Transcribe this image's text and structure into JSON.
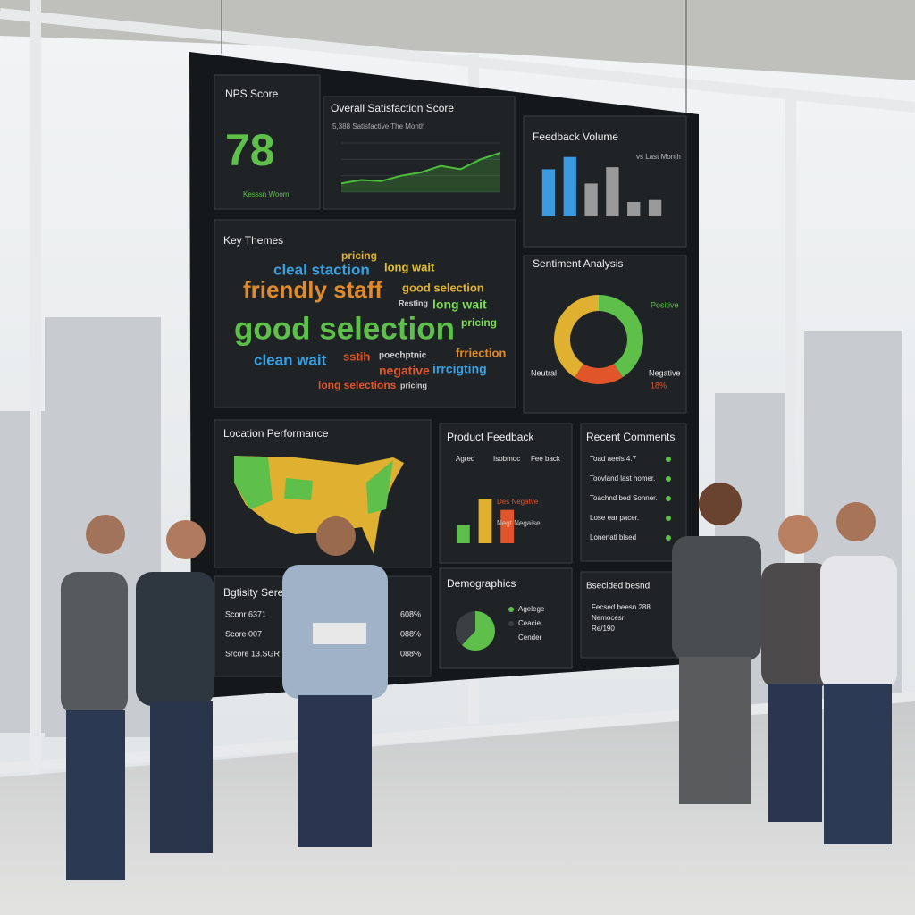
{
  "screen": {
    "nps": {
      "title": "NPS Score",
      "value": 78,
      "note": "Kesssn Woom"
    },
    "satisfaction": {
      "title": "Overall Satisfaction Score",
      "subtitle": "5,388 Satisfactive The Month",
      "values": [
        8,
        11,
        10,
        15,
        18,
        24,
        21,
        30,
        36
      ],
      "ylim": [
        0,
        45
      ],
      "color": "#4cbf3a"
    },
    "volume": {
      "title": "Feedback Volume",
      "legend": "vs Last Month",
      "values": [
        46,
        58,
        32,
        48,
        14,
        16
      ],
      "colors": [
        "#3b9be0",
        "#3b9be0",
        "#9a9a9a",
        "#9a9a9a",
        "#9a9a9a",
        "#9a9a9a"
      ],
      "ylim": [
        0,
        70
      ]
    },
    "themes": {
      "title": "Key Themes",
      "words": [
        {
          "text": "pricing",
          "color": "#e0b030"
        },
        {
          "text": "cleal staction",
          "color": "#3aa0e0"
        },
        {
          "text": "long wait",
          "color": "#e0c030"
        },
        {
          "text": "friendly staff",
          "color": "#e08a2a"
        },
        {
          "text": "good selection",
          "color": "#e0b030"
        },
        {
          "text": "Resting",
          "color": "#cccccc"
        },
        {
          "text": "long wait",
          "color": "#7ed957"
        },
        {
          "text": "pricing",
          "color": "#7ed957"
        },
        {
          "text": "good selection",
          "color": "#5ec04a"
        },
        {
          "text": "clean wait",
          "color": "#3aa0e0"
        },
        {
          "text": "sstih",
          "color": "#e0552a"
        },
        {
          "text": "poechptnic",
          "color": "#cccccc"
        },
        {
          "text": "frriection",
          "color": "#e08a2a"
        },
        {
          "text": "negative",
          "color": "#e0552a"
        },
        {
          "text": "irrcigting",
          "color": "#3aa0e0"
        },
        {
          "text": "long selections",
          "color": "#e0552a"
        },
        {
          "text": "pricing",
          "color": "#cccccc"
        }
      ]
    },
    "sentiment": {
      "title": "Sentiment Analysis",
      "segments": [
        {
          "label": "Positive",
          "value": 41,
          "color": "#5ec04a"
        },
        {
          "label": "Negative",
          "value": 18,
          "value_label": "18%",
          "color": "#e0552a"
        },
        {
          "label": "Neutral",
          "value": 41,
          "color": "#e0b030"
        }
      ]
    },
    "location": {
      "title": "Location Performance"
    },
    "product": {
      "title": "Product Feedback",
      "tabs": [
        "Agred",
        "Isobmoc",
        "Fee back"
      ],
      "values": [
        18,
        42,
        32
      ],
      "colors": [
        "#5ec04a",
        "#e0b030",
        "#e0552a"
      ],
      "ylim": [
        0,
        60
      ],
      "notes": [
        "Des Negatve",
        "Negt Negaise"
      ]
    },
    "comments": {
      "title": "Recent Comments",
      "items": [
        "Toad aeels 4.7",
        "Toovland last homer.",
        "Toachnd bed Sonner.",
        "Lose ear pacer.",
        "Lonenatl blsed"
      ]
    },
    "activity": {
      "title": "Bgtisity Sere",
      "rows": [
        [
          "Sconr 6371",
          "608%"
        ],
        [
          "Score 007",
          "088%"
        ],
        [
          "Srcore 13.SGR",
          "088%"
        ]
      ]
    },
    "demographics": {
      "title": "Demographics",
      "segments": [
        {
          "label": "Agelege",
          "value": 62,
          "color": "#5ec04a"
        },
        {
          "label": "Ceacie",
          "value": 38,
          "color": "#3a3f44"
        }
      ],
      "extra": "Cender"
    },
    "extra": {
      "title": "Bsecided besnd",
      "lines": [
        "Fecsed beesn 288",
        "Nemocesr",
        "Re/190"
      ]
    }
  }
}
